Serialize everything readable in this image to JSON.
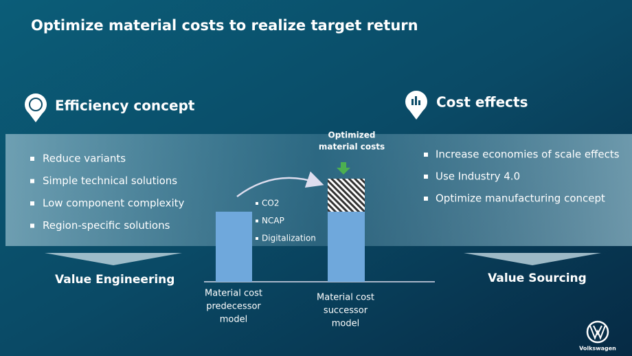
{
  "title": "Optimize material costs to realize target return",
  "left": {
    "heading": "Efficiency concept",
    "bullets": [
      "Reduce variants",
      "Simple technical solutions",
      "Low component complexity",
      "Region-specific solutions"
    ],
    "footer": "Value Engineering"
  },
  "center": {
    "callout": [
      "Optimized",
      "material costs"
    ],
    "factors": [
      "CO2",
      "NCAP",
      "Digitalization"
    ],
    "predecessor_label": [
      "Material cost",
      "predecessor",
      "model"
    ],
    "successor_label": [
      "Material  cost",
      "successor",
      "model"
    ]
  },
  "right": {
    "heading": "Cost effects",
    "bullets": [
      "Increase economies of scale effects",
      "Use Industry 4.0",
      "Optimize manufacturing concept"
    ],
    "footer": "Value Sourcing"
  },
  "brand": "Volkswagen"
}
